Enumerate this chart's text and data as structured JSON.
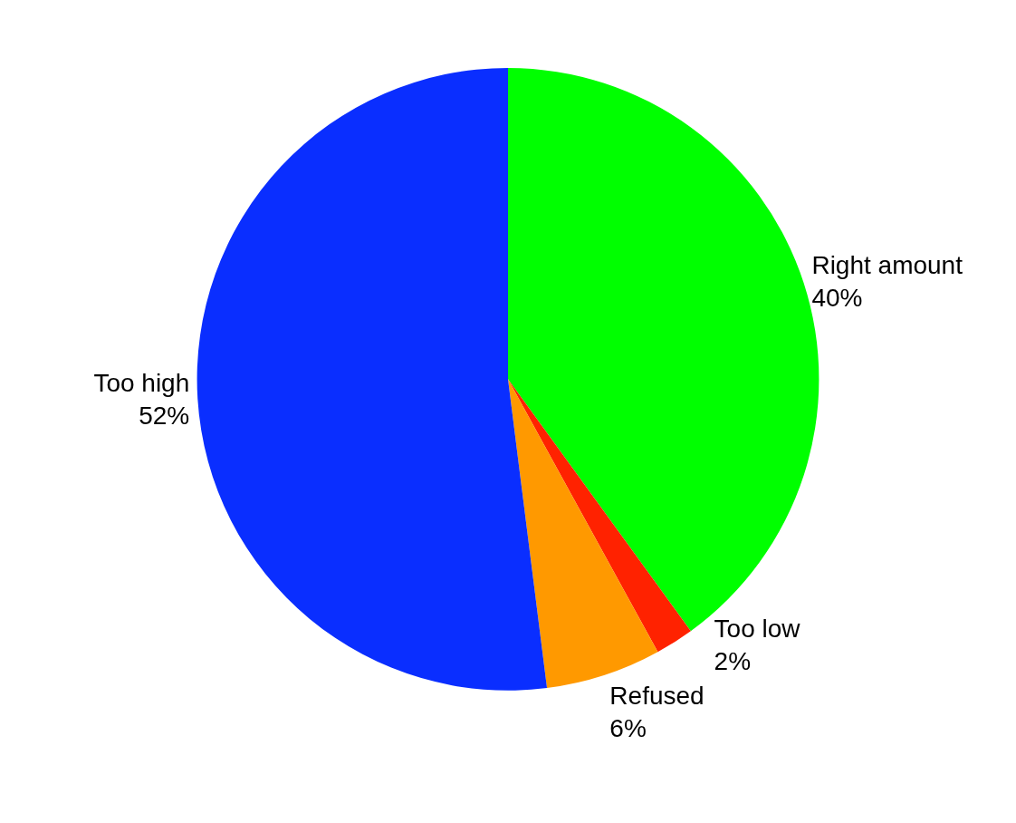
{
  "chart_data": {
    "type": "pie",
    "categories": [
      "Right amount",
      "Too low",
      "Refused",
      "Too high"
    ],
    "values": [
      40,
      2,
      6,
      52
    ],
    "value_labels": [
      "40%",
      "2%",
      "6%",
      "52%"
    ],
    "colors": [
      "#00ff00",
      "#ff2200",
      "#ff9900",
      "#0a2eff"
    ],
    "legend": false
  }
}
